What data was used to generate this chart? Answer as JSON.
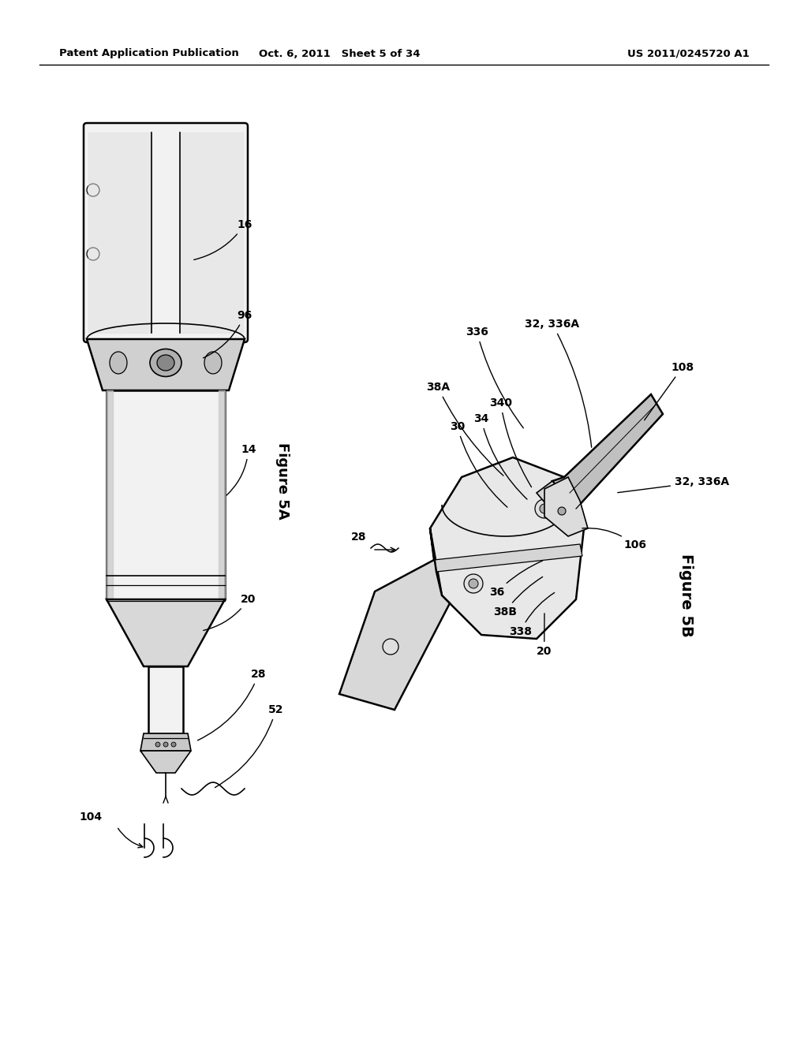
{
  "bg_color": "#ffffff",
  "header_left": "Patent Application Publication",
  "header_center": "Oct. 6, 2011   Sheet 5 of 34",
  "header_right": "US 2011/0245720 A1",
  "fig5a_label": "Figure 5A",
  "fig5b_label": "Figure 5B"
}
